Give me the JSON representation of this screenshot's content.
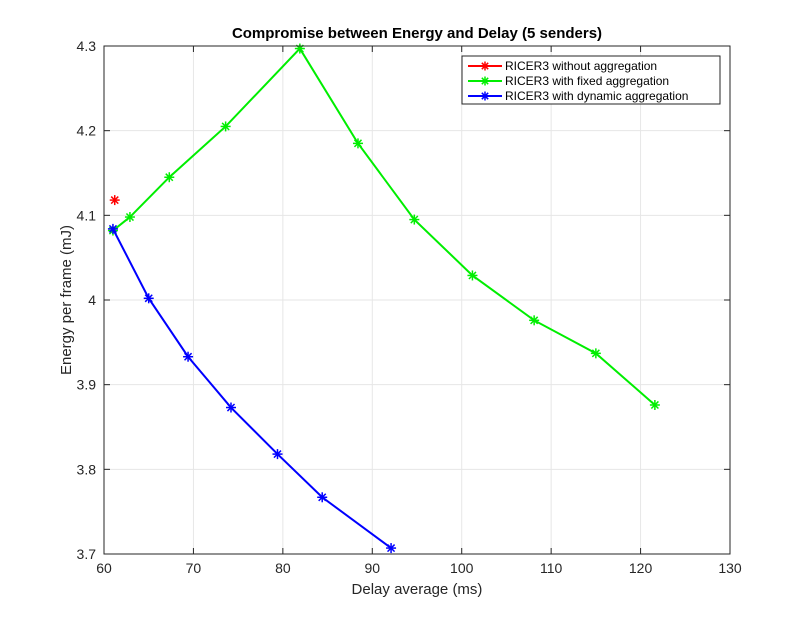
{
  "chart_data": {
    "type": "line",
    "title": "Compromise between Energy and Delay (5 senders)",
    "xlabel": "Delay average (ms)",
    "ylabel": "Energy per frame (mJ)",
    "xlim": [
      60,
      130
    ],
    "ylim": [
      3.7,
      4.3
    ],
    "xticks": [
      60,
      70,
      80,
      90,
      100,
      110,
      120,
      130
    ],
    "yticks": [
      3.7,
      3.8,
      3.9,
      4.0,
      4.1,
      4.2,
      4.3
    ],
    "xtick_labels": [
      "60",
      "70",
      "80",
      "90",
      "100",
      "110",
      "120",
      "130"
    ],
    "ytick_labels": [
      "3.7",
      "3.8",
      "3.9",
      "4",
      "4.1",
      "4.2",
      "4.3"
    ],
    "grid": true,
    "legend_position": "top-right",
    "marker": "asterisk",
    "series": [
      {
        "name": "RICER3 without aggregation",
        "color": "#ff0000",
        "x": [
          61.2
        ],
        "y": [
          4.118
        ]
      },
      {
        "name": "RICER3 with fixed aggregation",
        "color": "#00ee00",
        "x": [
          61,
          62.9,
          67.3,
          73.6,
          81.9,
          88.4,
          94.7,
          101.2,
          108.1,
          115.0,
          121.6
        ],
        "y": [
          4.082,
          4.098,
          4.145,
          4.205,
          4.297,
          4.185,
          4.095,
          4.029,
          3.976,
          3.937,
          3.876
        ]
      },
      {
        "name": "RICER3 with dynamic aggregation",
        "color": "#0000ff",
        "x": [
          61,
          65.0,
          69.4,
          74.2,
          79.4,
          84.4,
          92.1
        ],
        "y": [
          4.084,
          4.002,
          3.933,
          3.873,
          3.818,
          3.767,
          3.707
        ]
      }
    ]
  }
}
